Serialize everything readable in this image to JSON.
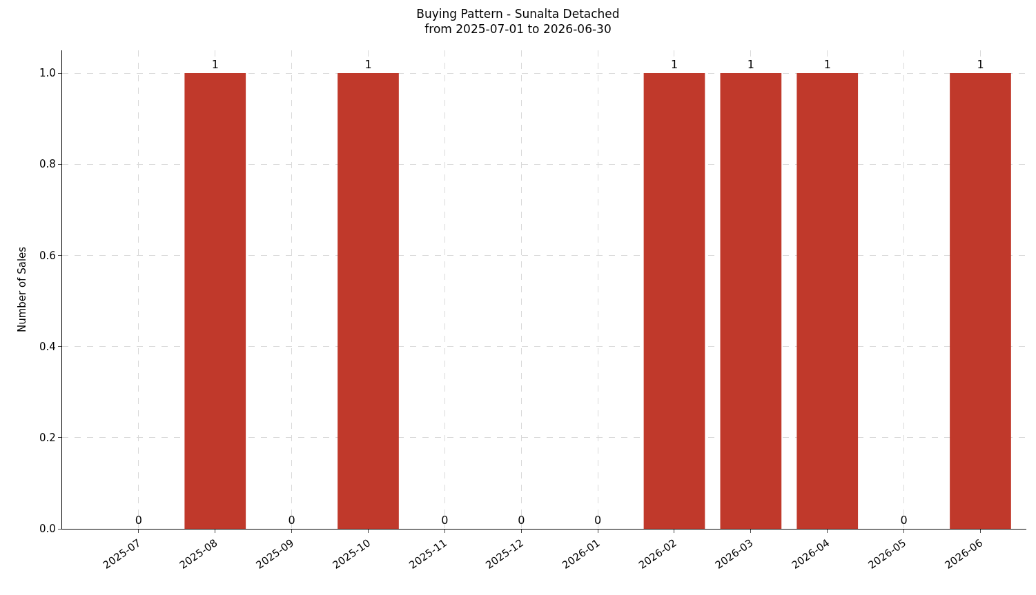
{
  "chart_data": {
    "type": "bar",
    "title": "Buying Pattern - Sunalta Detached\nfrom 2025-07-01 to 2026-06-30",
    "ylabel": "Number of Sales",
    "categories": [
      "2025-07",
      "2025-08",
      "2025-09",
      "2025-10",
      "2025-11",
      "2025-12",
      "2026-01",
      "2026-02",
      "2026-03",
      "2026-04",
      "2026-05",
      "2026-06"
    ],
    "values": [
      0,
      1,
      0,
      1,
      0,
      0,
      0,
      1,
      1,
      1,
      0,
      1
    ],
    "color": "#c0392b",
    "ylim": [
      0,
      1.05
    ],
    "yticks": [
      {
        "value": 0,
        "label": "0.0"
      },
      {
        "value": 0.2,
        "label": "0.2"
      },
      {
        "value": 0.4,
        "label": "0.4"
      },
      {
        "value": 0.6,
        "label": "0.6"
      },
      {
        "value": 0.8,
        "label": "0.8"
      },
      {
        "value": 1,
        "label": "1.0"
      }
    ],
    "data_labels": true,
    "grid": true
  }
}
